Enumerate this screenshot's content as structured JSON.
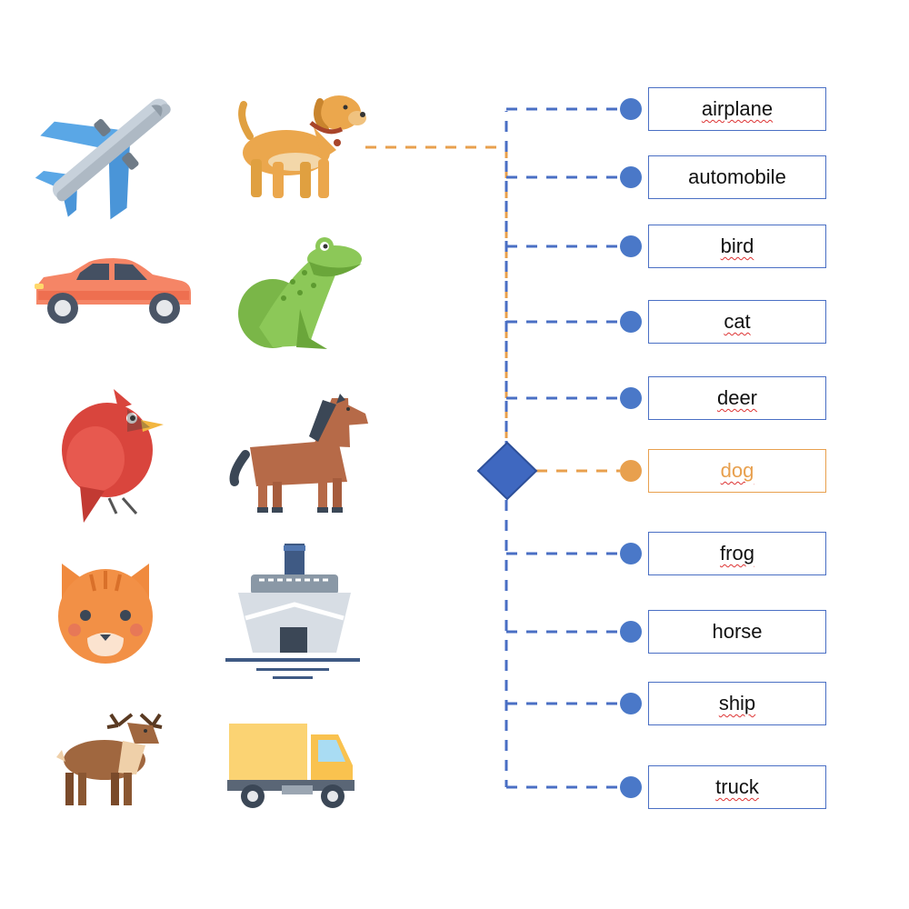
{
  "classes": [
    {
      "label": "airplane",
      "icon": "airplane-icon",
      "selected": false,
      "spell": true
    },
    {
      "label": "automobile",
      "icon": "car-icon",
      "selected": false,
      "spell": false
    },
    {
      "label": "bird",
      "icon": "bird-icon",
      "selected": false,
      "spell": true
    },
    {
      "label": "cat",
      "icon": "cat-icon",
      "selected": false,
      "spell": true
    },
    {
      "label": "deer",
      "icon": "deer-icon",
      "selected": false,
      "spell": true
    },
    {
      "label": "dog",
      "icon": "dog-icon",
      "selected": true,
      "spell": true
    },
    {
      "label": "frog",
      "icon": "frog-icon",
      "selected": false,
      "spell": true
    },
    {
      "label": "horse",
      "icon": "horse-icon",
      "selected": false,
      "spell": false
    },
    {
      "label": "ship",
      "icon": "ship-icon",
      "selected": false,
      "spell": true
    },
    {
      "label": "truck",
      "icon": "truck-icon",
      "selected": false,
      "spell": true
    }
  ],
  "input_image": {
    "icon": "dog-icon"
  },
  "colors": {
    "connector": "#4a6fc4",
    "selected": "#e8a04e",
    "node": "#4a78c8",
    "diamond": "#3f68c0"
  }
}
